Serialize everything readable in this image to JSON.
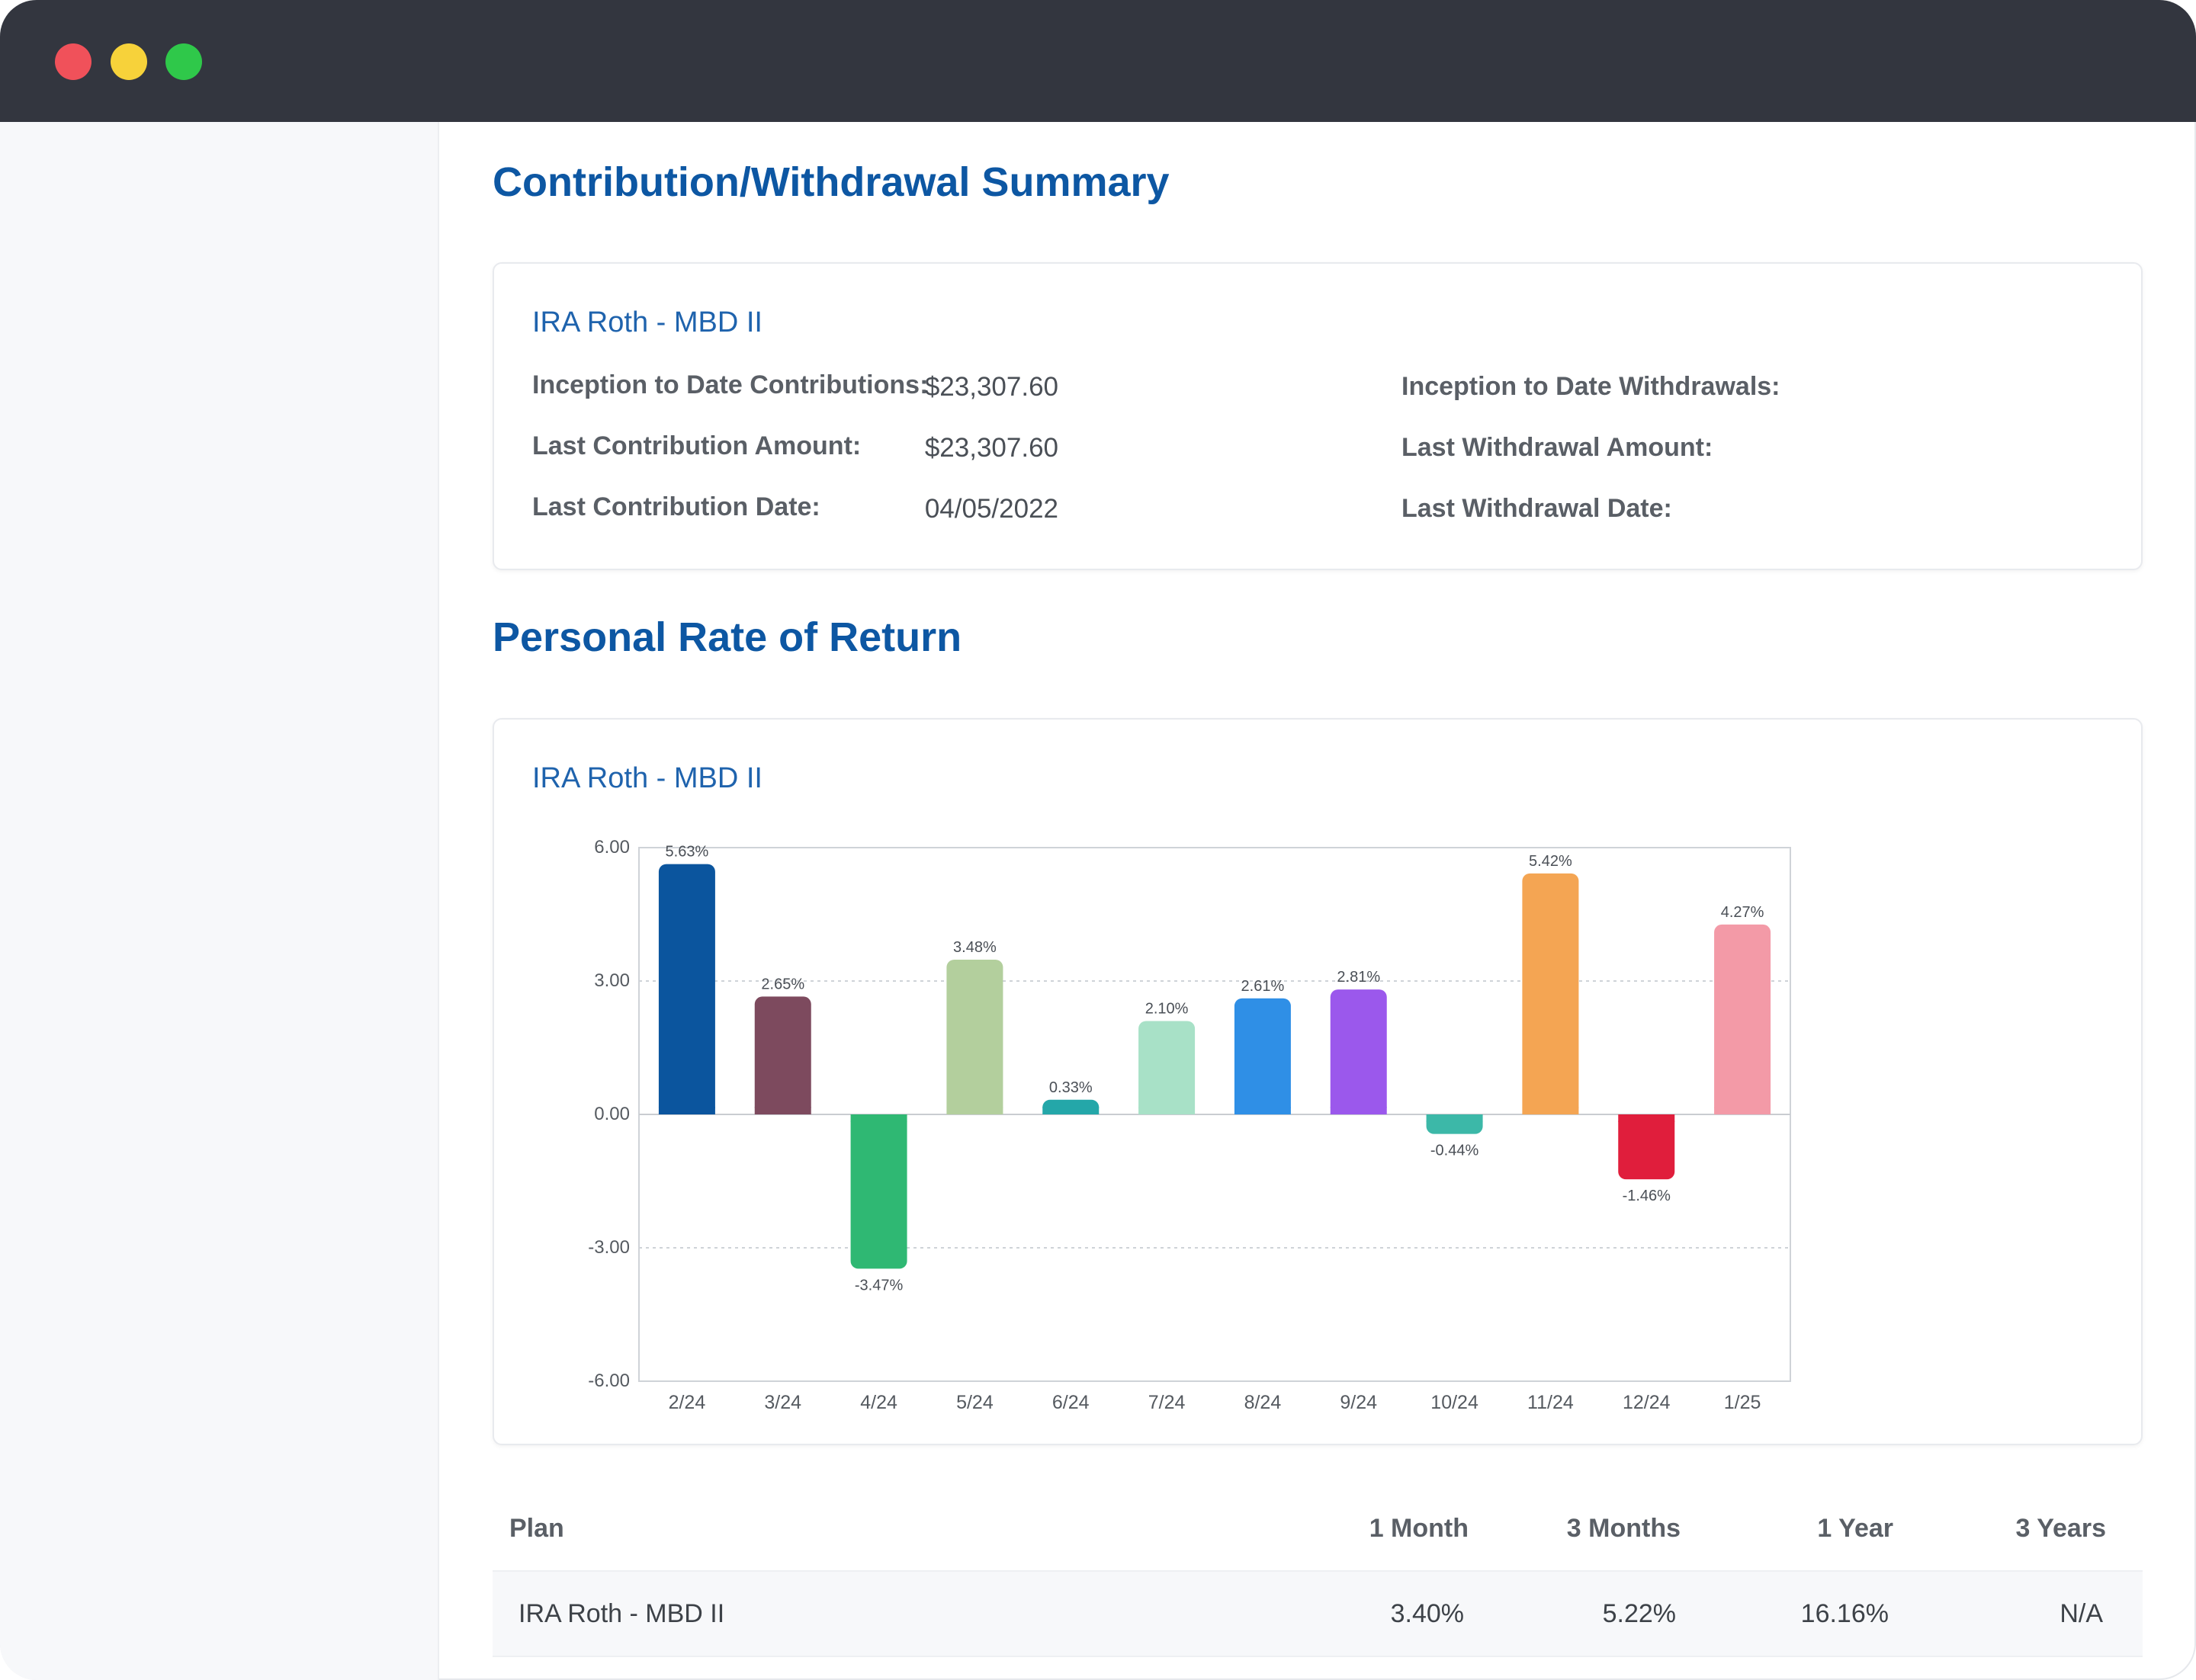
{
  "window": {
    "controls": [
      "close",
      "minimize",
      "maximize"
    ]
  },
  "summary": {
    "title": "Contribution/Withdrawal Summary",
    "card_title": "IRA Roth - MBD II",
    "rows": [
      {
        "label": "Inception to Date Contributions:",
        "value": "$23,307.60",
        "right_label": "Inception to Date Withdrawals:",
        "right_value": ""
      },
      {
        "label": "Last Contribution Amount:",
        "value": "$23,307.60",
        "right_label": "Last Withdrawal Amount:",
        "right_value": ""
      },
      {
        "label": "Last Contribution Date:",
        "value": "04/05/2022",
        "right_label": "Last Withdrawal Date:",
        "right_value": ""
      }
    ]
  },
  "returns": {
    "title": "Personal Rate of Return",
    "card_title": "IRA Roth - MBD II"
  },
  "chart_data": {
    "type": "bar",
    "categories": [
      "2/24",
      "3/24",
      "4/24",
      "5/24",
      "6/24",
      "7/24",
      "8/24",
      "9/24",
      "10/24",
      "11/24",
      "12/24",
      "1/25"
    ],
    "values": [
      5.63,
      2.65,
      -3.47,
      3.48,
      0.33,
      2.1,
      2.61,
      2.81,
      -0.44,
      5.42,
      -1.46,
      4.27
    ],
    "labels": [
      "5.63%",
      "2.65%",
      "-3.47%",
      "3.48%",
      "0.33%",
      "2.10%",
      "2.61%",
      "2.81%",
      "-0.44%",
      "5.42%",
      "-1.46%",
      "4.27%"
    ],
    "colors": [
      "#0b559e",
      "#7d4a5e",
      "#2fb873",
      "#b3cf9d",
      "#24a7a9",
      "#a8e1c7",
      "#2f8fe6",
      "#9b58ec",
      "#3cb8a8",
      "#f4a553",
      "#e01e3c",
      "#f39aa7"
    ],
    "yticks": [
      6,
      3,
      0,
      -3,
      -6
    ],
    "ytick_labels": [
      "6.00",
      "3.00",
      "0.00",
      "-3.00",
      "-6.00"
    ],
    "ylim": [
      -6,
      6
    ],
    "grid": "dashed at 3.00 and -3.00",
    "title": "",
    "xlabel": "",
    "ylabel": ""
  },
  "performance": {
    "headers": [
      "Plan",
      "1 Month",
      "3 Months",
      "1 Year",
      "3 Years"
    ],
    "rows": [
      [
        "IRA Roth - MBD II",
        "3.40%",
        "5.22%",
        "16.16%",
        "N/A"
      ]
    ]
  }
}
